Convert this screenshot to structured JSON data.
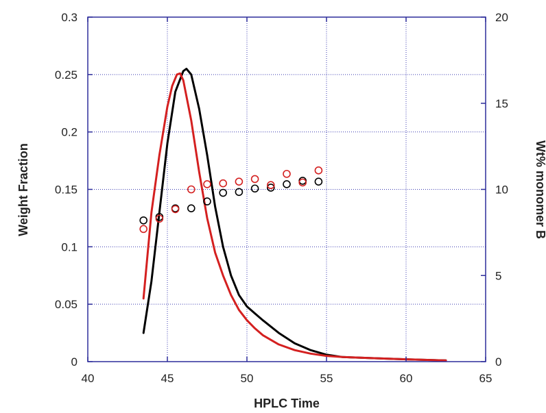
{
  "chart_data": {
    "type": "line",
    "title": "",
    "xlabel": "HPLC Time",
    "ylabel": "Weight Fraction",
    "y2label": "Wt% monomer B",
    "xlim": [
      40,
      65
    ],
    "ylim": [
      0,
      0.3
    ],
    "y2lim": [
      0,
      20
    ],
    "grid": true,
    "legend": "none",
    "x_ticks": [
      "40",
      "45",
      "50",
      "55",
      "60",
      "65"
    ],
    "y_ticks": [
      "0",
      "0.05",
      "0.1",
      "0.15",
      "0.2",
      "0.25",
      "0.3"
    ],
    "y2_ticks": [
      "0",
      "5",
      "10",
      "15",
      "20"
    ],
    "series": [
      {
        "kind": "line",
        "axis": "left",
        "color": "#000000",
        "x": [
          43.5,
          44.0,
          44.5,
          45.0,
          45.5,
          46.0,
          46.2,
          46.5,
          47.0,
          47.5,
          48.0,
          48.5,
          49.0,
          49.5,
          50.0,
          50.5,
          51.0,
          52.0,
          53.0,
          54.0,
          55.0,
          56.0,
          58.0,
          60.0,
          62.5
        ],
        "y": [
          0.025,
          0.07,
          0.13,
          0.19,
          0.235,
          0.253,
          0.255,
          0.25,
          0.22,
          0.18,
          0.135,
          0.1,
          0.075,
          0.058,
          0.048,
          0.042,
          0.036,
          0.025,
          0.016,
          0.01,
          0.006,
          0.004,
          0.003,
          0.002,
          0.001
        ]
      },
      {
        "kind": "line",
        "axis": "left",
        "color": "#d42020",
        "x": [
          43.5,
          44.0,
          44.5,
          45.0,
          45.3,
          45.6,
          45.8,
          46.0,
          46.5,
          47.0,
          47.5,
          48.0,
          48.5,
          49.0,
          49.5,
          50.0,
          50.5,
          51.0,
          52.0,
          53.0,
          54.0,
          55.0,
          56.0,
          58.0,
          60.0,
          62.5
        ],
        "y": [
          0.055,
          0.13,
          0.18,
          0.222,
          0.24,
          0.25,
          0.251,
          0.245,
          0.21,
          0.165,
          0.125,
          0.095,
          0.075,
          0.058,
          0.045,
          0.036,
          0.029,
          0.023,
          0.015,
          0.01,
          0.007,
          0.005,
          0.004,
          0.003,
          0.002,
          0.001
        ]
      },
      {
        "kind": "scatter",
        "axis": "right",
        "color": "#000000",
        "x": [
          43.5,
          44.5,
          45.5,
          46.5,
          47.5,
          48.5,
          49.5,
          50.5,
          51.5,
          52.5,
          53.5,
          54.5
        ],
        "y": [
          8.2,
          8.4,
          8.9,
          8.9,
          9.3,
          9.8,
          9.85,
          10.05,
          10.1,
          10.3,
          10.5,
          10.45
        ]
      },
      {
        "kind": "scatter",
        "axis": "right",
        "color": "#d42020",
        "x": [
          43.5,
          44.5,
          45.5,
          46.5,
          47.5,
          48.5,
          49.5,
          50.5,
          51.5,
          52.5,
          53.5,
          54.5
        ],
        "y": [
          7.7,
          8.3,
          8.85,
          10.0,
          10.3,
          10.35,
          10.45,
          10.6,
          10.25,
          10.9,
          10.4,
          11.1
        ]
      }
    ]
  }
}
